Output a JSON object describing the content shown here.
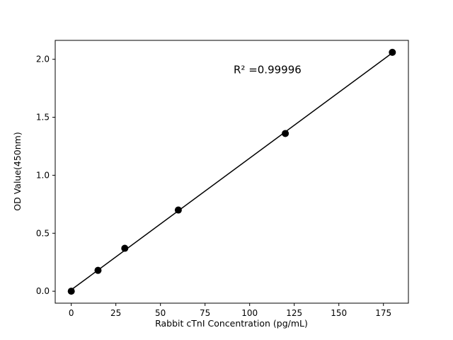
{
  "chart_data": {
    "type": "scatter",
    "title": "",
    "xlabel": "Rabbit cTnI Concentration (pg/mL)",
    "ylabel": "OD Value(450nm)",
    "x": [
      0,
      15,
      30,
      60,
      120,
      180
    ],
    "y": [
      0.0,
      0.18,
      0.37,
      0.7,
      1.36,
      2.06
    ],
    "series": [
      {
        "name": "standard-curve-points",
        "type": "scatter",
        "marker": "circle"
      },
      {
        "name": "linear-fit-line",
        "type": "line"
      }
    ],
    "annotation": {
      "text": "R² =0.99996",
      "x": 110,
      "y": 1.88,
      "r_squared": 0.99996
    },
    "xticks": {
      "values": [
        0,
        25,
        50,
        75,
        100,
        125,
        150,
        175
      ],
      "labels": [
        "0",
        "25",
        "50",
        "75",
        "100",
        "125",
        "150",
        "175"
      ]
    },
    "yticks": {
      "values": [
        0.0,
        0.5,
        1.0,
        1.5,
        2.0
      ],
      "labels": [
        "0.0",
        "0.5",
        "1.0",
        "1.5",
        "2.0"
      ]
    },
    "xlim": [
      -9,
      189
    ],
    "ylim": [
      -0.103,
      2.163
    ],
    "grid": false,
    "legend": "none",
    "colors": {
      "marker": "#000000",
      "line": "#000000",
      "axis": "#000000",
      "background": "#ffffff"
    }
  }
}
